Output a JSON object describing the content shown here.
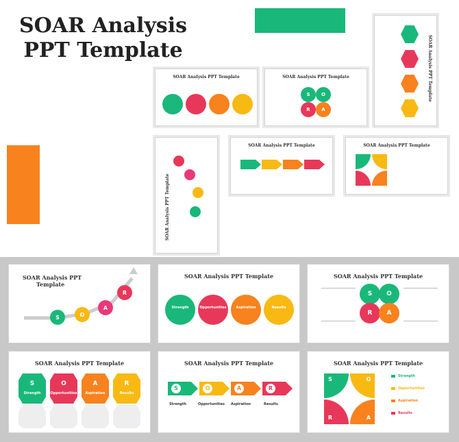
{
  "hero": {
    "title_line1": "SOAR Analysis",
    "title_line2": "PPT Template"
  },
  "slide_title": "SOAR Analysis PPT Template",
  "slide_title_short_l1": "SOAR Analysis PPT",
  "slide_title_short_l2": "Template",
  "letters": {
    "s": "S",
    "o": "O",
    "a": "A",
    "r": "R"
  },
  "labels": {
    "strength": "Strength",
    "opportunities": "Opportunities",
    "aspiration": "Aspiration",
    "results": "Results"
  },
  "colors": {
    "green": "#19b87a",
    "red": "#e8385a",
    "orange": "#f7821e",
    "yellow": "#f9b913",
    "gray": "#b8b8b8"
  }
}
